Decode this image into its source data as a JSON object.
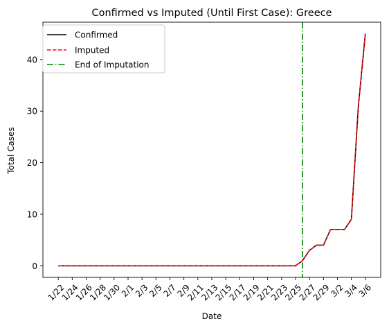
{
  "chart_data": {
    "type": "line",
    "title": "Confirmed vs Imputed (Until First Case): Greece",
    "xlabel": "Date",
    "ylabel": "Total Cases",
    "grid": false,
    "legend_position": "top-left",
    "ylim": [
      -2.25,
      47.25
    ],
    "yticks": [
      0,
      10,
      20,
      30,
      40
    ],
    "x": [
      "1/22",
      "1/23",
      "1/24",
      "1/25",
      "1/26",
      "1/27",
      "1/28",
      "1/29",
      "1/30",
      "1/31",
      "2/1",
      "2/2",
      "2/3",
      "2/4",
      "2/5",
      "2/6",
      "2/7",
      "2/8",
      "2/9",
      "2/10",
      "2/11",
      "2/12",
      "2/13",
      "2/14",
      "2/15",
      "2/16",
      "2/17",
      "2/18",
      "2/19",
      "2/20",
      "2/21",
      "2/22",
      "2/23",
      "2/24",
      "2/25",
      "2/26",
      "2/27",
      "2/28",
      "2/29",
      "3/1",
      "3/2",
      "3/3",
      "3/4",
      "3/5",
      "3/6"
    ],
    "xticks": [
      "1/22",
      "1/24",
      "1/26",
      "1/28",
      "1/30",
      "2/1",
      "2/3",
      "2/5",
      "2/7",
      "2/9",
      "2/11",
      "2/13",
      "2/15",
      "2/17",
      "2/19",
      "2/21",
      "2/23",
      "2/25",
      "2/27",
      "2/29",
      "3/2",
      "3/4",
      "3/6"
    ],
    "series": [
      {
        "name": "Confirmed",
        "color": "#000000",
        "style": "solid",
        "values": [
          0,
          0,
          0,
          0,
          0,
          0,
          0,
          0,
          0,
          0,
          0,
          0,
          0,
          0,
          0,
          0,
          0,
          0,
          0,
          0,
          0,
          0,
          0,
          0,
          0,
          0,
          0,
          0,
          0,
          0,
          0,
          0,
          0,
          0,
          0,
          1,
          3,
          4,
          4,
          7,
          7,
          7,
          9,
          31,
          45
        ]
      },
      {
        "name": "Imputed",
        "color": "#ff0000",
        "style": "dashed",
        "values": [
          0,
          0,
          0,
          0,
          0,
          0,
          0,
          0,
          0,
          0,
          0,
          0,
          0,
          0,
          0,
          0,
          0,
          0,
          0,
          0,
          0,
          0,
          0,
          0,
          0,
          0,
          0,
          0,
          0,
          0,
          0,
          0,
          0,
          0,
          0,
          1,
          3,
          4,
          4,
          7,
          7,
          7,
          9,
          31,
          45
        ]
      }
    ],
    "vlines": [
      {
        "name": "End of Imputation",
        "x": "2/26",
        "color": "#008000",
        "style": "dashdot"
      }
    ]
  }
}
